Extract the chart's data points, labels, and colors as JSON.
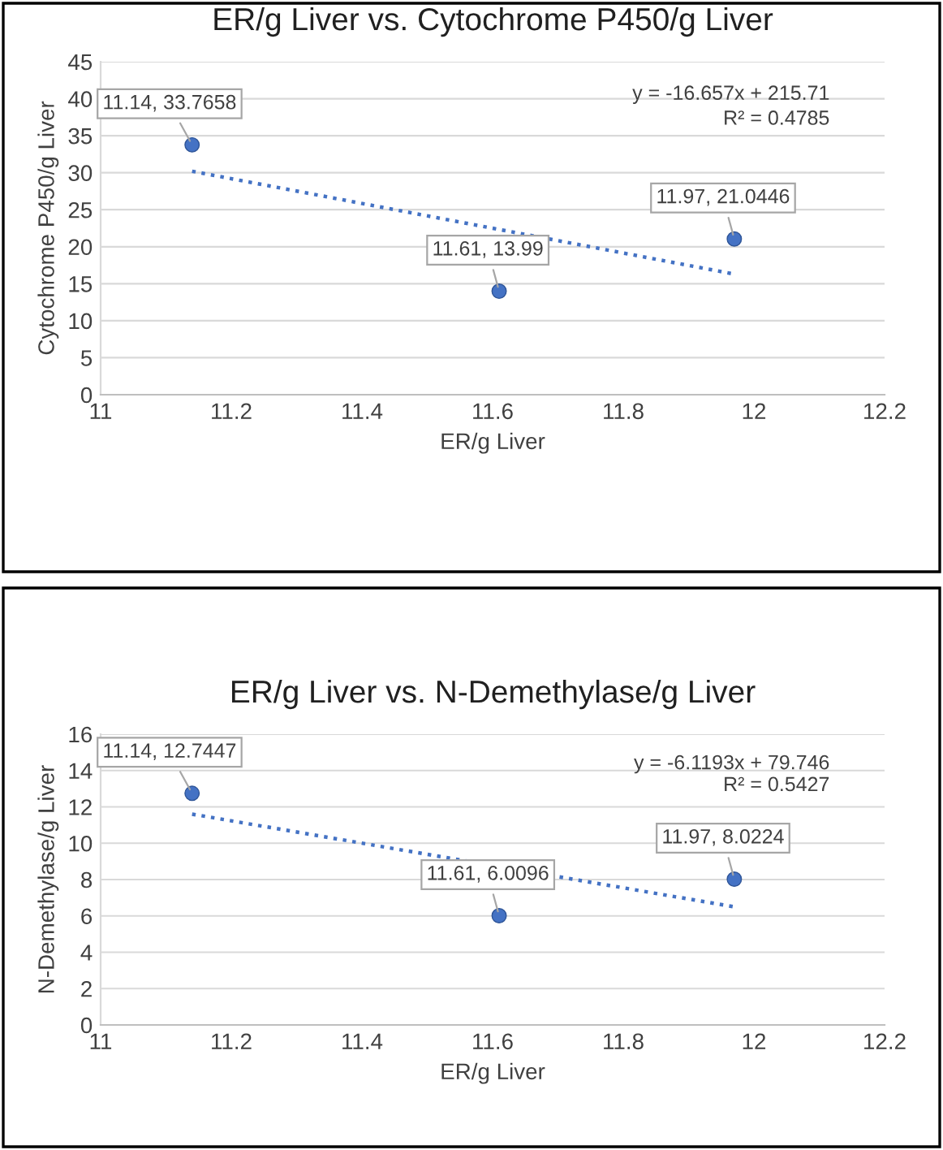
{
  "chart_data": [
    {
      "type": "scatter",
      "title": "ER/g Liver vs. Cytochrome P450/g Liver",
      "xlabel": "ER/g Liver",
      "ylabel": "Cytochrome P450/g Liver",
      "xlim": [
        11,
        12.2
      ],
      "xticks": [
        11,
        11.2,
        11.4,
        11.6,
        11.8,
        12,
        12.2
      ],
      "ylim": [
        0,
        45
      ],
      "yticks": [
        0,
        5,
        10,
        15,
        20,
        25,
        30,
        35,
        40,
        45
      ],
      "grid": "y",
      "series": [
        {
          "color": "#4472c4",
          "marker": "circle",
          "x": [
            11.14,
            11.61,
            11.97
          ],
          "values": [
            33.7658,
            13.99,
            21.0446
          ],
          "value_labels": [
            "11.14, 33.7658",
            "11.61, 13.99",
            "11.97, 21.0446"
          ]
        },
        {
          "type": "line",
          "color": "#4472c4",
          "line_style": "dotted",
          "x": [
            11.14,
            11.97
          ],
          "values": [
            30.2,
            16.3
          ]
        }
      ],
      "annotations": [
        "y = -16.657x + 215.71",
        "R² = 0.4785"
      ]
    },
    {
      "type": "scatter",
      "title": "ER/g Liver vs. N-Demethylase/g Liver",
      "xlabel": "ER/g Liver",
      "ylabel": "N-Demethylase/g Liver",
      "xlim": [
        11,
        12.2
      ],
      "xticks": [
        11,
        11.2,
        11.4,
        11.6,
        11.8,
        12,
        12.2
      ],
      "ylim": [
        0,
        16
      ],
      "yticks": [
        0,
        2,
        4,
        6,
        8,
        10,
        12,
        14,
        16
      ],
      "grid": "y",
      "series": [
        {
          "color": "#4472c4",
          "marker": "circle",
          "x": [
            11.14,
            11.61,
            11.97
          ],
          "values": [
            12.7447,
            6.0096,
            8.0224
          ],
          "value_labels": [
            "11.14, 12.7447",
            "11.61, 6.0096",
            "11.97, 8.0224"
          ]
        },
        {
          "type": "line",
          "color": "#4472c4",
          "line_style": "dotted",
          "x": [
            11.14,
            11.97
          ],
          "values": [
            11.6,
            6.5
          ]
        }
      ],
      "annotations": [
        "y = -6.1193x + 79.746",
        "R² = 0.5427"
      ]
    }
  ]
}
